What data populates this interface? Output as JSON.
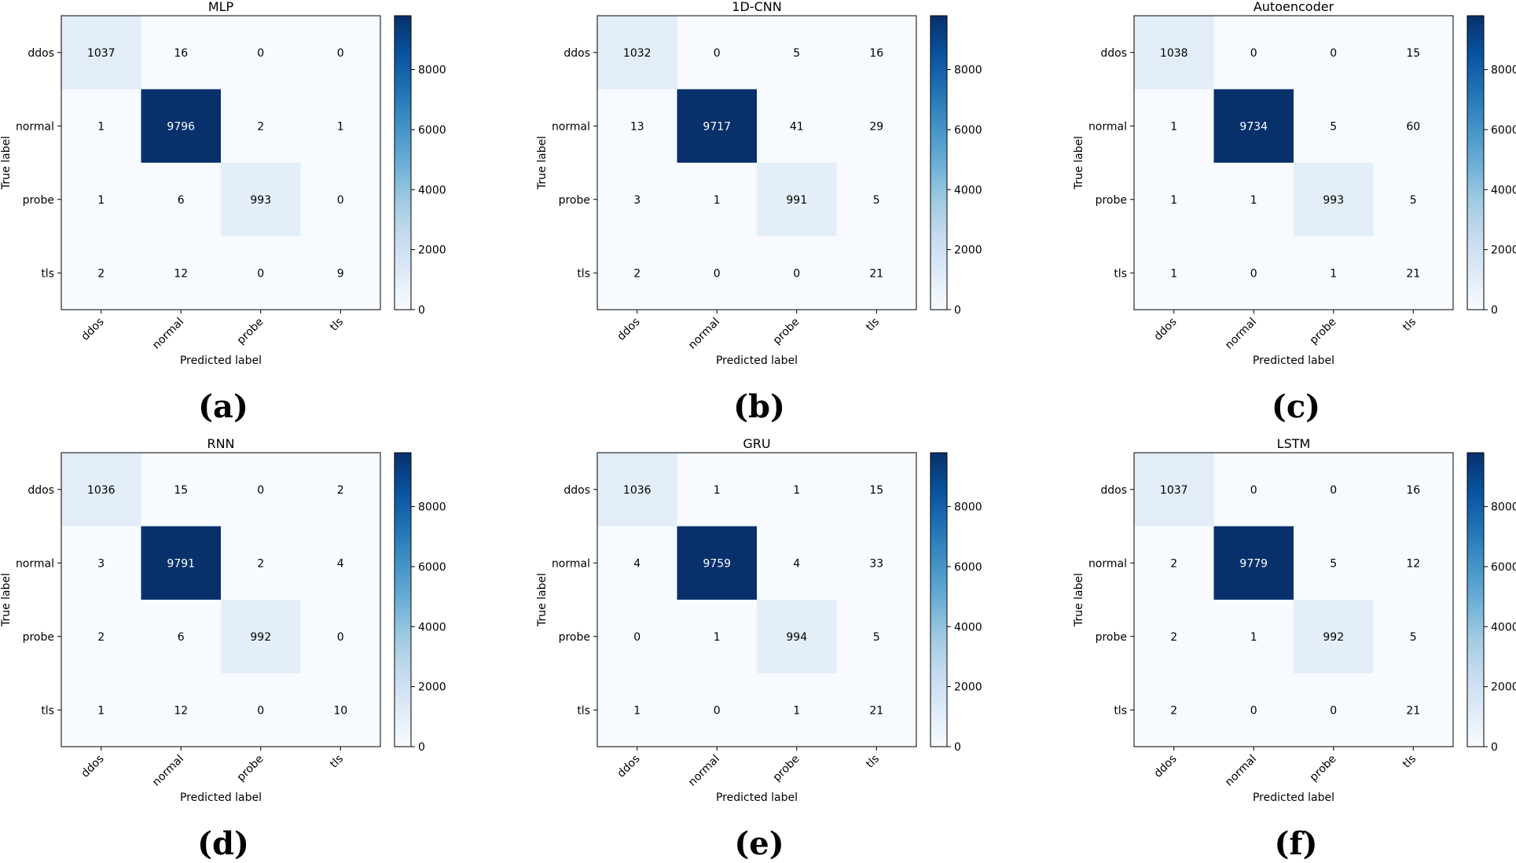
{
  "chart_data": [
    {
      "type": "heatmap",
      "title": "MLP",
      "panel_label": "(a)",
      "xlabel": "Predicted label",
      "ylabel": "True label",
      "x_categories": [
        "ddos",
        "normal",
        "probe",
        "tls"
      ],
      "y_categories": [
        "ddos",
        "normal",
        "probe",
        "tls"
      ],
      "matrix": [
        [
          1037,
          16,
          0,
          0
        ],
        [
          1,
          9796,
          2,
          1
        ],
        [
          1,
          6,
          993,
          0
        ],
        [
          2,
          12,
          0,
          9
        ]
      ],
      "colorbar": {
        "cmap": "Blues",
        "ticks": [
          "0",
          "2000",
          "4000",
          "6000",
          "8000"
        ],
        "range": [
          0,
          9796
        ]
      }
    },
    {
      "type": "heatmap",
      "title": "1D-CNN",
      "panel_label": "(b)",
      "xlabel": "Predicted label",
      "ylabel": "True label",
      "x_categories": [
        "ddos",
        "normal",
        "probe",
        "tls"
      ],
      "y_categories": [
        "ddos",
        "normal",
        "probe",
        "tls"
      ],
      "matrix": [
        [
          1032,
          0,
          5,
          16
        ],
        [
          13,
          9717,
          41,
          29
        ],
        [
          3,
          1,
          991,
          5
        ],
        [
          2,
          0,
          0,
          21
        ]
      ],
      "colorbar": {
        "cmap": "Blues",
        "ticks": [
          "0",
          "2000",
          "4000",
          "6000",
          "8000"
        ],
        "range": [
          0,
          9717
        ]
      }
    },
    {
      "type": "heatmap",
      "title": "Autoencoder",
      "panel_label": "(c)",
      "xlabel": "Predicted label",
      "ylabel": "True label",
      "x_categories": [
        "ddos",
        "normal",
        "probe",
        "tls"
      ],
      "y_categories": [
        "ddos",
        "normal",
        "probe",
        "tls"
      ],
      "matrix": [
        [
          1038,
          0,
          0,
          15
        ],
        [
          1,
          9734,
          5,
          60
        ],
        [
          1,
          1,
          993,
          5
        ],
        [
          1,
          0,
          1,
          21
        ]
      ],
      "colorbar": {
        "cmap": "Blues",
        "ticks": [
          "0",
          "2000",
          "4000",
          "6000",
          "8000"
        ],
        "range": [
          0,
          9734
        ]
      }
    },
    {
      "type": "heatmap",
      "title": "RNN",
      "panel_label": "(d)",
      "xlabel": "Predicted label",
      "ylabel": "True label",
      "x_categories": [
        "ddos",
        "normal",
        "probe",
        "tls"
      ],
      "y_categories": [
        "ddos",
        "normal",
        "probe",
        "tls"
      ],
      "matrix": [
        [
          1036,
          15,
          0,
          2
        ],
        [
          3,
          9791,
          2,
          4
        ],
        [
          2,
          6,
          992,
          0
        ],
        [
          1,
          12,
          0,
          10
        ]
      ],
      "colorbar": {
        "cmap": "Blues",
        "ticks": [
          "0",
          "2000",
          "4000",
          "6000",
          "8000"
        ],
        "range": [
          0,
          9791
        ]
      }
    },
    {
      "type": "heatmap",
      "title": "GRU",
      "panel_label": "(e)",
      "xlabel": "Predicted label",
      "ylabel": "True label",
      "x_categories": [
        "ddos",
        "normal",
        "probe",
        "tls"
      ],
      "y_categories": [
        "ddos",
        "normal",
        "probe",
        "tls"
      ],
      "matrix": [
        [
          1036,
          1,
          1,
          15
        ],
        [
          4,
          9759,
          4,
          33
        ],
        [
          0,
          1,
          994,
          5
        ],
        [
          1,
          0,
          1,
          21
        ]
      ],
      "colorbar": {
        "cmap": "Blues",
        "ticks": [
          "0",
          "2000",
          "4000",
          "6000",
          "8000"
        ],
        "range": [
          0,
          9759
        ]
      }
    },
    {
      "type": "heatmap",
      "title": "LSTM",
      "panel_label": "(f)",
      "xlabel": "Predicted label",
      "ylabel": "True label",
      "x_categories": [
        "ddos",
        "normal",
        "probe",
        "tls"
      ],
      "y_categories": [
        "ddos",
        "normal",
        "probe",
        "tls"
      ],
      "matrix": [
        [
          1037,
          0,
          0,
          16
        ],
        [
          2,
          9779,
          5,
          12
        ],
        [
          2,
          1,
          992,
          5
        ],
        [
          2,
          0,
          0,
          21
        ]
      ],
      "colorbar": {
        "cmap": "Blues",
        "ticks": [
          "0",
          "2000",
          "4000",
          "6000",
          "8000"
        ],
        "range": [
          0,
          9779
        ]
      }
    }
  ],
  "colors": {
    "cmap_low": "#f7fbff",
    "cmap_high": "#08306b",
    "text_dark": "#000000",
    "text_light": "#ffffff"
  }
}
